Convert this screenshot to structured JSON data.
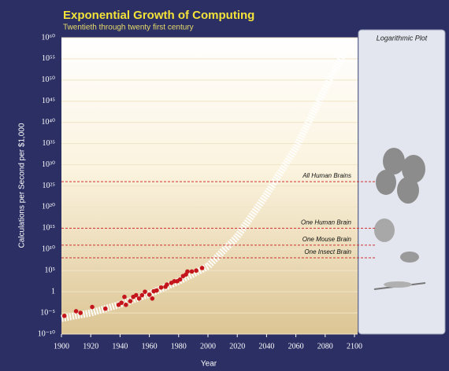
{
  "chart_data": {
    "type": "scatter",
    "title": "Exponential Growth of Computing",
    "subtitle": "Twentieth through twenty first century",
    "xlabel": "Year",
    "ylabel": "Calculations per Second per $1,000",
    "panel_title": "Logarithmic Plot",
    "yscale": "log",
    "xlim": [
      1900,
      2100
    ],
    "xticks": [
      1900,
      1920,
      1940,
      1960,
      1980,
      2000,
      2020,
      2040,
      2060,
      2080,
      2100
    ],
    "ylim": [
      1e-10,
      1e+60
    ],
    "yticks": [
      {
        "value": 1e-10,
        "label": "10⁻¹⁰"
      },
      {
        "value": 1e-05,
        "label": "10⁻⁵"
      },
      1,
      {
        "value": 100000.0,
        "label": "10⁵"
      },
      {
        "value": 10000000000.0,
        "label": "10¹⁰"
      },
      {
        "value": 1000000000000000.0,
        "label": "10¹⁵"
      },
      {
        "value": 1e+20,
        "label": "10²⁰"
      },
      {
        "value": 1e+25,
        "label": "10²⁵"
      },
      {
        "value": 1e+30,
        "label": "10³⁰"
      },
      {
        "value": 1e+35,
        "label": "10³⁵"
      },
      {
        "value": 1e+40,
        "label": "10⁴⁰"
      },
      {
        "value": 1e+45,
        "label": "10⁴⁵"
      },
      {
        "value": 1e+50,
        "label": "10⁵⁰"
      },
      {
        "value": 1e+55,
        "label": "10⁵⁵"
      },
      {
        "value": 1e+60,
        "label": "10⁶⁰"
      }
    ],
    "grid": true,
    "series": [
      {
        "type": "line",
        "color": "#ffffff",
        "x": [
          1900,
          1920,
          1940,
          1960,
          1980,
          2000,
          2020,
          2040,
          2060,
          2080,
          2095
        ],
        "values": [
          5e-07,
          1e-05,
          0.001,
          0.3,
          300,
          1000000.0,
          10000000000000.0,
          1e+23,
          1e+34,
          1e+48,
          1e+58
        ]
      },
      {
        "type": "scatter",
        "color": "#c4141c",
        "x": [
          1902,
          1910,
          1913,
          1921,
          1930,
          1939,
          1941,
          1943,
          1944,
          1947,
          1949,
          1951,
          1953,
          1955,
          1957,
          1960,
          1962,
          1963,
          1965,
          1968,
          1971,
          1972,
          1975,
          1977,
          1979,
          1981,
          1983,
          1985,
          1986,
          1989,
          1992,
          1996
        ],
        "values": [
          2e-06,
          2.5e-05,
          1e-05,
          0.00025,
          0.0001,
          0.0008,
          0.0025,
          0.06,
          0.0008,
          0.006,
          0.06,
          0.15,
          0.025,
          0.15,
          1,
          0.2,
          0.025,
          1.3,
          2,
          10,
          15,
          50,
          120,
          300,
          300,
          800,
          5000,
          12000,
          60000,
          60000,
          100000,
          400000
        ]
      }
    ],
    "reference_lines": [
      {
        "label": "All Human Brains",
        "value": 1e+26,
        "color": "#d03030"
      },
      {
        "label": "One Human Brain",
        "value": 1000000000000000.0,
        "color": "#d03030"
      },
      {
        "label": "One Mouse Brain",
        "value": 100000000000.0,
        "color": "#d03030"
      },
      {
        "label": "One Insect Brain",
        "value": 100000000.0,
        "color": "#d03030"
      }
    ]
  }
}
